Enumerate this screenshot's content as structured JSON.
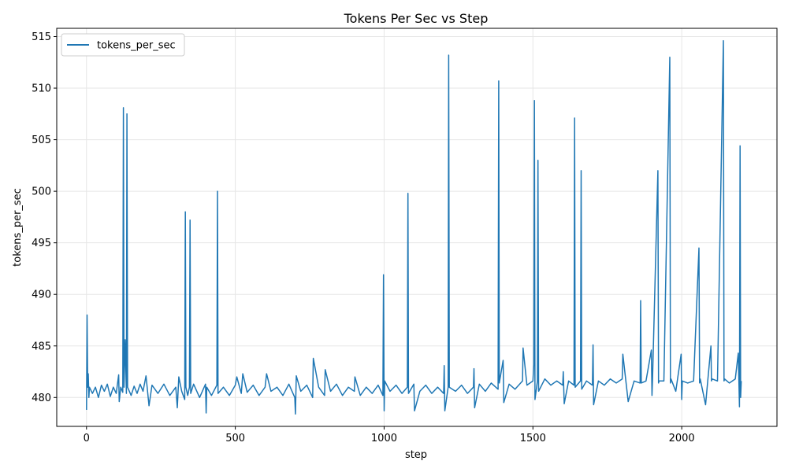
{
  "chart_data": {
    "type": "line",
    "title": "Tokens Per Sec vs Step",
    "xlabel": "step",
    "ylabel": "tokens_per_sec",
    "xlim": [
      -100,
      2320
    ],
    "ylim": [
      477.2,
      515.8
    ],
    "xticks": [
      0,
      500,
      1000,
      1500,
      2000
    ],
    "yticks": [
      480,
      485,
      490,
      495,
      500,
      505,
      510,
      515
    ],
    "grid": true,
    "legend": "top-left",
    "colors": {
      "series": "#1f77b4",
      "grid": "#e6e6e6",
      "axis": "#000000"
    },
    "series": [
      {
        "name": "tokens_per_sec",
        "x": [
          0,
          2,
          4,
          6,
          8,
          10,
          20,
          30,
          40,
          50,
          60,
          70,
          80,
          90,
          100,
          108,
          110,
          115,
          122,
          124,
          126,
          130,
          134,
          136,
          138,
          150,
          160,
          170,
          180,
          190,
          200,
          210,
          220,
          240,
          260,
          280,
          300,
          305,
          310,
          320,
          330,
          332,
          334,
          340,
          346,
          348,
          350,
          360,
          380,
          400,
          402,
          404,
          420,
          438,
          440,
          442,
          460,
          480,
          500,
          505,
          520,
          525,
          540,
          560,
          580,
          600,
          605,
          620,
          640,
          660,
          680,
          700,
          702,
          705,
          720,
          740,
          760,
          762,
          780,
          800,
          802,
          820,
          840,
          860,
          880,
          900,
          902,
          920,
          940,
          960,
          980,
          996,
          998,
          1000,
          1002,
          1020,
          1040,
          1060,
          1078,
          1080,
          1082,
          1100,
          1102,
          1120,
          1140,
          1160,
          1180,
          1200,
          1202,
          1204,
          1215,
          1217,
          1219,
          1240,
          1260,
          1280,
          1300,
          1302,
          1304,
          1320,
          1340,
          1360,
          1383,
          1385,
          1387,
          1400,
          1402,
          1420,
          1440,
          1465,
          1467,
          1480,
          1500,
          1503,
          1505,
          1507,
          1515,
          1517,
          1519,
          1540,
          1560,
          1580,
          1600,
          1602,
          1605,
          1620,
          1638,
          1640,
          1642,
          1660,
          1662,
          1664,
          1680,
          1700,
          1702,
          1704,
          1720,
          1740,
          1760,
          1780,
          1800,
          1802,
          1820,
          1840,
          1860,
          1862,
          1864,
          1880,
          1898,
          1900,
          1902,
          1920,
          1922,
          1924,
          1940,
          1960,
          1962,
          1964,
          1980,
          1998,
          2000,
          2002,
          2020,
          2040,
          2058,
          2060,
          2062,
          2080,
          2098,
          2100,
          2102,
          2120,
          2140,
          2142,
          2144,
          2160,
          2180,
          2190,
          2194,
          2196,
          2198,
          2200
        ],
        "values": [
          478.8,
          488.0,
          481.0,
          482.3,
          480.0,
          481.0,
          480.4,
          481.0,
          480.0,
          481.2,
          480.6,
          481.3,
          480.1,
          481.0,
          480.4,
          482.2,
          479.6,
          481.0,
          480.5,
          508.1,
          481.0,
          485.6,
          480.4,
          507.5,
          481.0,
          480.2,
          481.1,
          480.4,
          481.3,
          480.6,
          482.1,
          479.2,
          481.2,
          480.4,
          481.3,
          480.2,
          481.0,
          479.0,
          482.0,
          480.6,
          479.8,
          498.0,
          481.0,
          480.2,
          481.0,
          497.2,
          480.4,
          481.3,
          480.0,
          481.3,
          478.5,
          481.0,
          480.2,
          481.2,
          500.0,
          480.4,
          481.0,
          480.2,
          481.2,
          482.0,
          480.4,
          482.3,
          480.5,
          481.2,
          480.2,
          481.0,
          482.3,
          480.6,
          481.0,
          480.2,
          481.3,
          480.0,
          478.4,
          482.1,
          480.6,
          481.2,
          480.0,
          483.8,
          481.0,
          480.2,
          482.7,
          480.6,
          481.3,
          480.2,
          481.0,
          480.6,
          482.0,
          480.2,
          481.0,
          480.4,
          481.2,
          480.2,
          491.9,
          478.7,
          481.6,
          480.6,
          481.2,
          480.4,
          481.0,
          499.8,
          480.4,
          481.3,
          478.7,
          480.6,
          481.2,
          480.4,
          481.0,
          480.4,
          483.1,
          478.7,
          481.0,
          513.2,
          481.0,
          480.6,
          481.2,
          480.4,
          481.0,
          482.8,
          479.0,
          481.3,
          480.6,
          481.4,
          480.8,
          510.7,
          481.4,
          483.6,
          479.5,
          481.3,
          480.8,
          481.6,
          484.8,
          481.2,
          481.6,
          483.2,
          508.8,
          479.8,
          481.6,
          503.0,
          480.6,
          481.8,
          481.2,
          481.6,
          481.2,
          482.5,
          479.4,
          481.6,
          481.2,
          507.1,
          481.0,
          481.6,
          502.0,
          480.8,
          481.6,
          481.2,
          485.1,
          479.3,
          481.6,
          481.2,
          481.8,
          481.4,
          481.8,
          484.2,
          479.6,
          481.6,
          481.4,
          489.4,
          481.4,
          481.6,
          484.6,
          480.2,
          481.8,
          502.0,
          481.4,
          481.6,
          481.6,
          513.0,
          481.4,
          481.8,
          480.6,
          484.2,
          479.8,
          481.6,
          481.4,
          481.6,
          494.5,
          481.4,
          481.8,
          479.3,
          485.0,
          481.6,
          481.8,
          481.6,
          514.6,
          481.6,
          481.8,
          481.4,
          481.8,
          484.3,
          479.1,
          504.4,
          480.0,
          481.6
        ]
      }
    ]
  }
}
